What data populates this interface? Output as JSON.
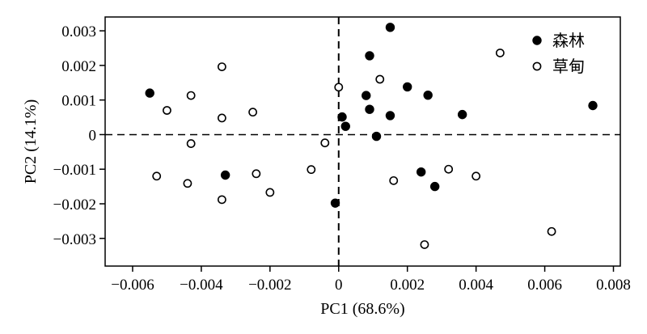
{
  "chart_data": {
    "type": "scatter",
    "xlabel": "PC1 (68.6%)",
    "ylabel": "PC2 (14.1%)",
    "xlim": [
      -0.0068,
      0.0082
    ],
    "ylim": [
      -0.0038,
      0.0034
    ],
    "xticks": [
      -0.006,
      -0.004,
      -0.002,
      0,
      0.002,
      0.004,
      0.006,
      0.008
    ],
    "xtick_labels": [
      "−0.006",
      "−0.004",
      "−0.002",
      "0",
      "0.002",
      "0.004",
      "0.006",
      "0.008"
    ],
    "yticks": [
      0.003,
      0.002,
      0.001,
      0,
      -0.001,
      -0.002,
      -0.003
    ],
    "ytick_labels": [
      "0.003",
      "0.002",
      "0.001",
      "0",
      "−0.001",
      "−0.002",
      "−0.003"
    ],
    "reference_lines": {
      "x": 0,
      "y": 0,
      "style": "dashed"
    },
    "grid": false,
    "legend_position": "top-right",
    "series": [
      {
        "name": "森林",
        "marker": "filled-circle",
        "color": "#000000",
        "points": [
          [
            0.0015,
            0.0031
          ],
          [
            0.0009,
            0.00228
          ],
          [
            -0.0055,
            0.0012
          ],
          [
            0.002,
            0.00138
          ],
          [
            0.0008,
            0.00113
          ],
          [
            0.0026,
            0.00114
          ],
          [
            0.0009,
            0.00073
          ],
          [
            0.0015,
            0.00055
          ],
          [
            0.0036,
            0.00058
          ],
          [
            0.0074,
            0.00084
          ],
          [
            0.0001,
            0.00051
          ],
          [
            0.0002,
            0.00024
          ],
          [
            0.0011,
            -5e-05
          ],
          [
            -0.0033,
            -0.00117
          ],
          [
            0.0024,
            -0.00108
          ],
          [
            0.0028,
            -0.0015
          ],
          [
            -0.0001,
            -0.00198
          ]
        ]
      },
      {
        "name": "草甸",
        "marker": "open-circle",
        "color": "#000000",
        "points": [
          [
            0.0047,
            0.00236
          ],
          [
            -0.0034,
            0.00196
          ],
          [
            0.0012,
            0.0016
          ],
          [
            0.0,
            0.00137
          ],
          [
            -0.0043,
            0.00113
          ],
          [
            -0.005,
            0.0007
          ],
          [
            -0.0025,
            0.00065
          ],
          [
            -0.0034,
            0.00048
          ],
          [
            -0.0043,
            -0.00026
          ],
          [
            -0.0004,
            -0.00024
          ],
          [
            -0.0008,
            -0.00101
          ],
          [
            -0.0024,
            -0.00113
          ],
          [
            0.0032,
            -0.001
          ],
          [
            -0.0053,
            -0.0012
          ],
          [
            0.004,
            -0.0012
          ],
          [
            -0.0044,
            -0.00141
          ],
          [
            0.0016,
            -0.00133
          ],
          [
            -0.002,
            -0.00167
          ],
          [
            -0.0034,
            -0.00188
          ],
          [
            0.0062,
            -0.0028
          ],
          [
            0.0025,
            -0.00318
          ]
        ]
      }
    ]
  }
}
